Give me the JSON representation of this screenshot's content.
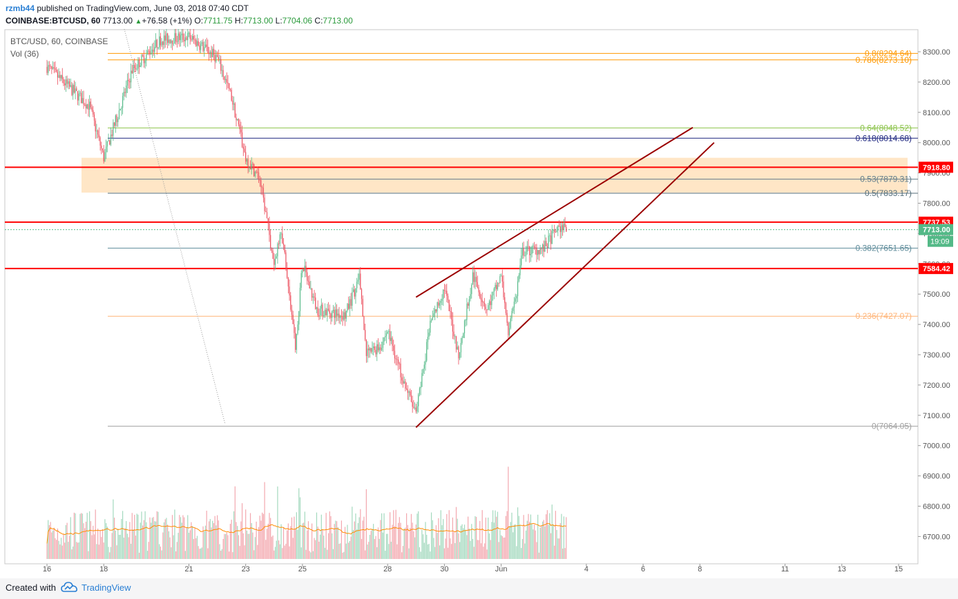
{
  "header": {
    "user": "rzmb44",
    "published": " published on TradingView.com, June 03, 2018 07:40 CDT",
    "symbol": "COINBASE:BTCUSD, 60",
    "last": "7713.00",
    "arrow": "▲",
    "change": "+76.58 (+1%)",
    "o_label": "O:",
    "o_value": "7711.75",
    "h_label": "H:",
    "h_value": "7713.00",
    "l_label": "L:",
    "l_value": "7704.06",
    "c_label": "C:",
    "c_value": "7713.00"
  },
  "legend": {
    "symbol_line": "BTC/USD, 60, COINBASE",
    "volume_line": "Vol (36)"
  },
  "footer": {
    "created_with": "Created with",
    "brand": "TradingView"
  },
  "colors": {
    "up": "#53b987",
    "down": "#eb4d5c",
    "vol_up": "#a3d9be",
    "vol_down": "#f3a7ae",
    "sr_line": "#ff0000",
    "trendline": "#9b0000",
    "zone": "#ffe0b8",
    "vol_ma": "#ff8c00"
  },
  "chart_data": {
    "type": "candlestick",
    "symbol": "BTC/USD",
    "interval": "60",
    "exchange": "COINBASE",
    "ylim": [
      6660,
      8380
    ],
    "y_ticks": [
      6700,
      6800,
      6900,
      7000,
      7100,
      7200,
      7300,
      7400,
      7500,
      7600,
      7700,
      7800,
      7900,
      8000,
      8100,
      8200,
      8300
    ],
    "x_ticks": [
      "16",
      "18",
      "21",
      "23",
      "25",
      "28",
      "30",
      "Jun",
      "4",
      "6",
      "8",
      "11",
      "13",
      "15"
    ],
    "key_points": [
      {
        "date": "2018-05-16 00:00",
        "approx_price": 8250
      },
      {
        "date": "2018-05-17 12:00",
        "approx_price": 8120
      },
      {
        "date": "2018-05-18 00:00",
        "approx_price": 7950
      },
      {
        "date": "2018-05-19 00:00",
        "approx_price": 8240
      },
      {
        "date": "2018-05-20 00:00",
        "approx_price": 8340
      },
      {
        "date": "2018-05-21 00:00",
        "approx_price": 8350
      },
      {
        "date": "2018-05-22 00:00",
        "approx_price": 8280
      },
      {
        "date": "2018-05-22 12:00",
        "approx_price": 8150
      },
      {
        "date": "2018-05-23 00:00",
        "approx_price": 7950
      },
      {
        "date": "2018-05-23 12:00",
        "approx_price": 7880
      },
      {
        "date": "2018-05-24 00:00",
        "approx_price": 7600
      },
      {
        "date": "2018-05-24 06:00",
        "approx_price": 7720
      },
      {
        "date": "2018-05-24 18:00",
        "approx_price": 7320
      },
      {
        "date": "2018-05-25 00:00",
        "approx_price": 7600
      },
      {
        "date": "2018-05-25 12:00",
        "approx_price": 7450
      },
      {
        "date": "2018-05-26 12:00",
        "approx_price": 7430
      },
      {
        "date": "2018-05-27 00:00",
        "approx_price": 7550
      },
      {
        "date": "2018-05-27 06:00",
        "approx_price": 7300
      },
      {
        "date": "2018-05-27 18:00",
        "approx_price": 7330
      },
      {
        "date": "2018-05-28 00:00",
        "approx_price": 7380
      },
      {
        "date": "2018-05-28 12:00",
        "approx_price": 7230
      },
      {
        "date": "2018-05-29 00:00",
        "approx_price": 7100
      },
      {
        "date": "2018-05-29 12:00",
        "approx_price": 7400
      },
      {
        "date": "2018-05-30 00:00",
        "approx_price": 7520
      },
      {
        "date": "2018-05-30 12:00",
        "approx_price": 7300
      },
      {
        "date": "2018-05-31 00:00",
        "approx_price": 7560
      },
      {
        "date": "2018-05-31 12:00",
        "approx_price": 7450
      },
      {
        "date": "2018-06-01 00:00",
        "approx_price": 7560
      },
      {
        "date": "2018-06-01 06:00",
        "approx_price": 7370
      },
      {
        "date": "2018-06-01 12:00",
        "approx_price": 7480
      },
      {
        "date": "2018-06-01 18:00",
        "approx_price": 7640
      },
      {
        "date": "2018-06-02 12:00",
        "approx_price": 7650
      },
      {
        "date": "2018-06-03 00:00",
        "approx_price": 7720
      },
      {
        "date": "2018-06-03 07:00",
        "approx_price": 7713
      }
    ],
    "volume_ma_approx": 60,
    "horizontal_levels": [
      {
        "label": "7918.80",
        "price": 7918.8,
        "kind": "resistance"
      },
      {
        "label": "7737.53",
        "price": 7737.53,
        "kind": "resistance"
      },
      {
        "label": "7584.42",
        "price": 7584.42,
        "kind": "support"
      }
    ],
    "current_price": {
      "label": "7713.00",
      "price": 7713.0,
      "countdown": "19:09"
    },
    "fib_levels": [
      {
        "label": "0.8(8294.64)",
        "price": 8294.64,
        "color": "#ff9800"
      },
      {
        "label": "0.786(8273.10)",
        "price": 8273.1,
        "color": "#ff9800"
      },
      {
        "label": "0.64(8048.52)",
        "price": 8048.52,
        "color": "#8bc34a"
      },
      {
        "label": "0.618(8014.68)",
        "price": 8014.68,
        "color": "#1a237e"
      },
      {
        "label": "0.53(7879.31)",
        "price": 7879.31,
        "color": "#607d8b"
      },
      {
        "label": "0.5(7833.17)",
        "price": 7833.17,
        "color": "#546e7a"
      },
      {
        "label": "0.382(7651.65)",
        "price": 7651.65,
        "color": "#5c8a99"
      },
      {
        "label": "0.236(7427.07)",
        "price": 7427.07,
        "color": "#ffb477"
      },
      {
        "label": "0(7064.05)",
        "price": 7064.05,
        "color": "#a0a0a0"
      }
    ],
    "zone": {
      "from_price": 7835,
      "to_price": 7950
    },
    "trendlines": [
      {
        "from": {
          "date": "2018-05-29 00:00",
          "price": 7490
        },
        "to": {
          "date": "2018-06-07 18:00",
          "price": 8050
        }
      },
      {
        "from": {
          "date": "2018-05-29 00:00",
          "price": 7060
        },
        "to": {
          "date": "2018-06-08 12:00",
          "price": 8000
        }
      }
    ]
  }
}
